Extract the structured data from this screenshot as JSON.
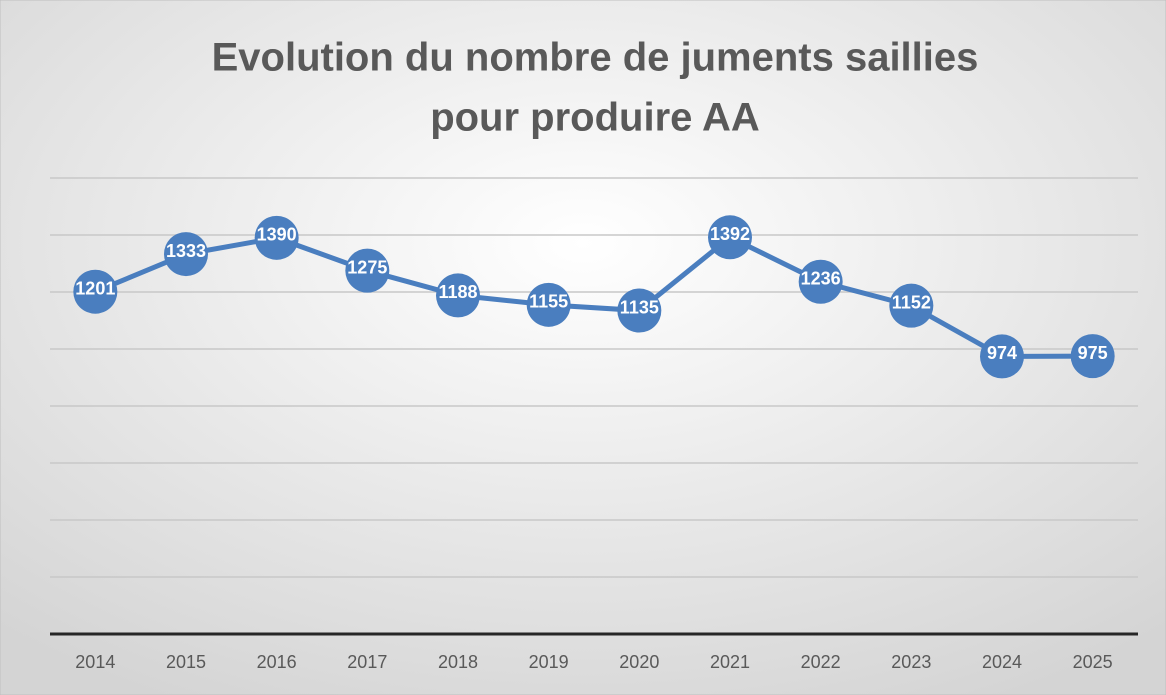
{
  "chart_data": {
    "type": "line",
    "title": [
      "Evolution du nombre de juments saillies",
      "pour produire AA"
    ],
    "categories": [
      "2014",
      "2015",
      "2016",
      "2017",
      "2018",
      "2019",
      "2020",
      "2021",
      "2022",
      "2023",
      "2024",
      "2025"
    ],
    "series": [
      {
        "color": "#4a7ebf",
        "values": [
          1201,
          1333,
          1390,
          1275,
          1188,
          1155,
          1135,
          1392,
          1236,
          1152,
          974,
          975
        ]
      }
    ],
    "ylim": [
      0,
      1600
    ],
    "yticks": [
      0,
      200,
      400,
      600,
      800,
      1000,
      1200,
      1400,
      1600
    ],
    "grid": true
  }
}
